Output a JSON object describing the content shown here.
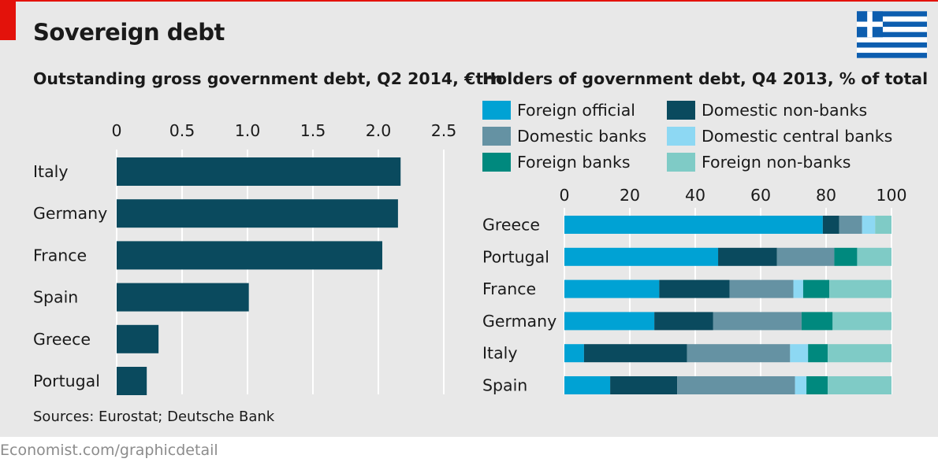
{
  "header": {
    "title": "Sovereign debt"
  },
  "flag": {
    "name": "greece-flag-icon",
    "blue": "#0d5eaf",
    "white": "#ffffff"
  },
  "colors": {
    "bar": "#0a4a5e",
    "grid": "#ffffff",
    "text": "#1a1a1a"
  },
  "chart_data": [
    {
      "type": "bar",
      "orientation": "horizontal",
      "title": "Outstanding gross government debt, Q2 2014, €trn",
      "categories": [
        "Italy",
        "Germany",
        "France",
        "Spain",
        "Greece",
        "Portugal"
      ],
      "values": [
        2.17,
        2.15,
        2.03,
        1.01,
        0.32,
        0.23
      ],
      "x_ticks": [
        "0",
        "0.5",
        "1.0",
        "1.5",
        "2.0",
        "2.5"
      ],
      "xlim": [
        0,
        2.5
      ],
      "grid": true,
      "axis_position": "top"
    },
    {
      "type": "bar",
      "orientation": "horizontal",
      "stacked": true,
      "title": "Holders of government debt, Q4 2013, % of total",
      "categories": [
        "Greece",
        "Portugal",
        "France",
        "Germany",
        "Italy",
        "Spain"
      ],
      "x_ticks": [
        "0",
        "20",
        "40",
        "60",
        "80",
        "100"
      ],
      "xlim": [
        0,
        100
      ],
      "legend_placement": "top",
      "series": [
        {
          "name": "Foreign official",
          "color": "#00a2d4",
          "values": [
            79,
            47,
            29,
            27.5,
            6,
            14
          ]
        },
        {
          "name": "Domestic non-banks",
          "color": "#0a4a5e",
          "values": [
            5,
            18,
            21.5,
            18,
            31.5,
            20.5
          ]
        },
        {
          "name": "Domestic banks",
          "color": "#6592a3",
          "values": [
            7,
            17.5,
            19.5,
            27,
            31.5,
            36
          ]
        },
        {
          "name": "Domestic central banks",
          "color": "#8dd8f3",
          "values": [
            4,
            0,
            3,
            0,
            5.5,
            3.5
          ]
        },
        {
          "name": "Foreign banks",
          "color": "#00897e",
          "values": [
            0,
            7,
            8,
            9.5,
            6,
            6.5
          ]
        },
        {
          "name": "Foreign non-banks",
          "color": "#7fcbc6",
          "values": [
            5,
            10.5,
            19,
            18,
            19.5,
            19.5
          ]
        }
      ]
    }
  ],
  "sources": "Sources: Eurostat; Deutsche Bank",
  "footer": "Economist.com/graphicdetail"
}
